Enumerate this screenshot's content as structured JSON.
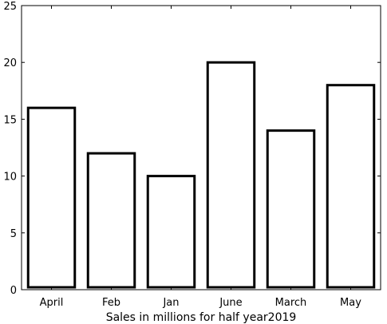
{
  "chart_data": {
    "type": "bar",
    "categories": [
      "April",
      "Feb",
      "Jan",
      "June",
      "March",
      "May"
    ],
    "values": [
      16,
      12,
      10,
      20,
      14,
      18
    ],
    "xlabel": "Sales in millions for half year2019",
    "ylabel": "",
    "ylim": [
      0,
      25
    ],
    "yticks": [
      0,
      5,
      10,
      15,
      20,
      25
    ],
    "grid": false,
    "bar_fill": "#ffffff",
    "bar_edge": "#000000"
  }
}
